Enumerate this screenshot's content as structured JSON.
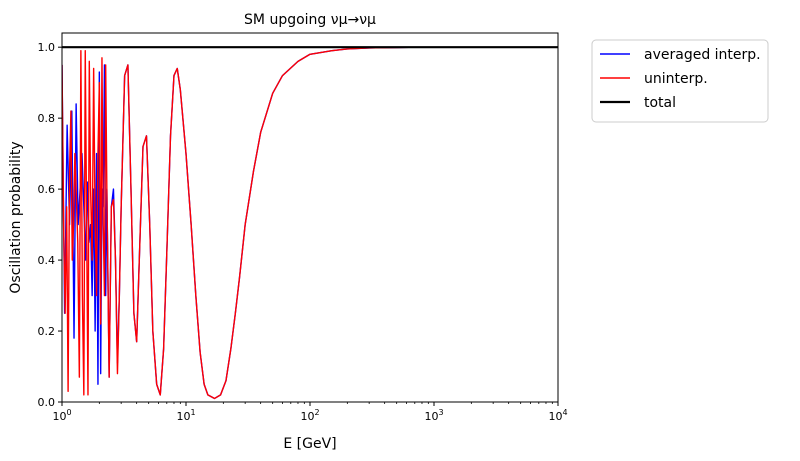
{
  "chart_data": {
    "type": "line",
    "title": "SM upgoing νμ→νμ",
    "xlabel": "E [GeV]",
    "ylabel": "Oscillation probability",
    "xscale": "log",
    "xlim": [
      1,
      10000
    ],
    "ylim": [
      0,
      1.04
    ],
    "x_ticks": [
      1,
      10,
      100,
      1000,
      10000
    ],
    "x_tick_labels": [
      {
        "base": "10",
        "exp": "0"
      },
      {
        "base": "10",
        "exp": "1"
      },
      {
        "base": "10",
        "exp": "2"
      },
      {
        "base": "10",
        "exp": "3"
      },
      {
        "base": "10",
        "exp": "4"
      }
    ],
    "y_ticks": [
      0.0,
      0.2,
      0.4,
      0.6,
      0.8,
      1.0
    ],
    "y_tick_labels": [
      "0.0",
      "0.2",
      "0.4",
      "0.6",
      "0.8",
      "1.0"
    ],
    "grid": false,
    "legend_position": "outside upper right",
    "series": [
      {
        "name": "averaged interp.",
        "color": "#0000ff",
        "x": [
          1.0,
          1.05,
          1.1,
          1.15,
          1.2,
          1.25,
          1.3,
          1.35,
          1.4,
          1.45,
          1.5,
          1.55,
          1.6,
          1.65,
          1.7,
          1.75,
          1.8,
          1.85,
          1.9,
          1.95,
          2.0,
          2.05,
          2.1,
          2.15,
          2.2,
          2.25,
          2.3,
          2.4,
          2.5,
          2.6,
          2.7,
          2.8,
          2.9,
          3.0,
          3.2,
          3.4,
          3.6,
          3.8,
          4.0,
          4.2,
          4.5,
          4.8,
          5.1,
          5.4,
          5.8,
          6.2,
          6.6,
          7.0,
          7.5,
          8.0,
          8.5,
          9.0,
          10.0,
          11.0,
          12.0,
          13.0,
          14.0,
          15.0,
          17.0,
          19.0,
          21.0,
          23.0,
          25.0,
          27.0,
          30.0,
          35.0,
          40.0,
          50.0,
          60.0,
          80.0,
          100.0,
          150.0,
          200.0,
          300.0,
          500.0,
          700.0,
          1000.0,
          2000.0,
          5000.0,
          10000.0
        ],
        "y": [
          0.95,
          0.25,
          0.78,
          0.5,
          0.82,
          0.18,
          0.84,
          0.5,
          0.6,
          0.7,
          0.55,
          0.4,
          0.62,
          0.45,
          0.5,
          0.3,
          0.6,
          0.2,
          0.7,
          0.05,
          0.93,
          0.08,
          0.6,
          0.55,
          0.95,
          0.3,
          0.6,
          0.07,
          0.55,
          0.6,
          0.4,
          0.11,
          0.3,
          0.55,
          0.92,
          0.95,
          0.6,
          0.25,
          0.17,
          0.4,
          0.72,
          0.75,
          0.5,
          0.2,
          0.05,
          0.02,
          0.15,
          0.42,
          0.75,
          0.92,
          0.94,
          0.88,
          0.7,
          0.5,
          0.3,
          0.14,
          0.05,
          0.02,
          0.01,
          0.02,
          0.06,
          0.15,
          0.25,
          0.35,
          0.5,
          0.65,
          0.76,
          0.87,
          0.92,
          0.96,
          0.98,
          0.99,
          0.995,
          0.998,
          0.999,
          1.0,
          1.0,
          1.0,
          1.0,
          1.0
        ]
      },
      {
        "name": "uninterp.",
        "color": "#ff0000",
        "x": [
          1.0,
          1.03,
          1.06,
          1.09,
          1.12,
          1.15,
          1.18,
          1.21,
          1.24,
          1.27,
          1.3,
          1.34,
          1.38,
          1.42,
          1.46,
          1.5,
          1.54,
          1.58,
          1.62,
          1.66,
          1.7,
          1.75,
          1.8,
          1.85,
          1.9,
          1.95,
          2.0,
          2.05,
          2.1,
          2.15,
          2.2,
          2.25,
          2.3,
          2.4,
          2.5,
          2.6,
          2.7,
          2.8,
          2.9,
          3.0,
          3.2,
          3.4,
          3.6,
          3.8,
          4.0,
          4.2,
          4.5,
          4.8,
          5.1,
          5.4,
          5.8,
          6.2,
          6.6,
          7.0,
          7.5,
          8.0,
          8.5,
          9.0,
          10.0,
          11.0,
          12.0,
          13.0,
          14.0,
          15.0,
          17.0,
          19.0,
          21.0,
          23.0,
          25.0,
          27.0,
          30.0,
          35.0,
          40.0,
          50.0,
          60.0,
          80.0,
          100.0,
          150.0,
          200.0,
          300.0,
          500.0,
          700.0,
          1000.0,
          2000.0,
          5000.0,
          10000.0
        ],
        "y": [
          0.95,
          0.5,
          0.25,
          0.55,
          0.03,
          0.65,
          0.82,
          0.4,
          0.5,
          0.7,
          0.6,
          0.45,
          0.07,
          0.99,
          0.3,
          0.02,
          0.99,
          0.5,
          0.02,
          0.96,
          0.6,
          0.4,
          0.94,
          0.5,
          0.3,
          0.7,
          0.9,
          0.22,
          0.97,
          0.5,
          0.3,
          0.95,
          0.6,
          0.07,
          0.55,
          0.57,
          0.4,
          0.08,
          0.3,
          0.55,
          0.92,
          0.95,
          0.6,
          0.25,
          0.17,
          0.4,
          0.72,
          0.75,
          0.5,
          0.2,
          0.05,
          0.02,
          0.15,
          0.42,
          0.75,
          0.92,
          0.94,
          0.88,
          0.7,
          0.5,
          0.3,
          0.14,
          0.05,
          0.02,
          0.01,
          0.02,
          0.06,
          0.15,
          0.25,
          0.35,
          0.5,
          0.65,
          0.76,
          0.87,
          0.92,
          0.96,
          0.98,
          0.99,
          0.995,
          0.998,
          0.999,
          1.0,
          1.0,
          1.0,
          1.0,
          1.0
        ]
      },
      {
        "name": "total",
        "color": "#000000",
        "x": [
          1,
          10000
        ],
        "y": [
          1.0,
          1.0
        ]
      }
    ]
  }
}
